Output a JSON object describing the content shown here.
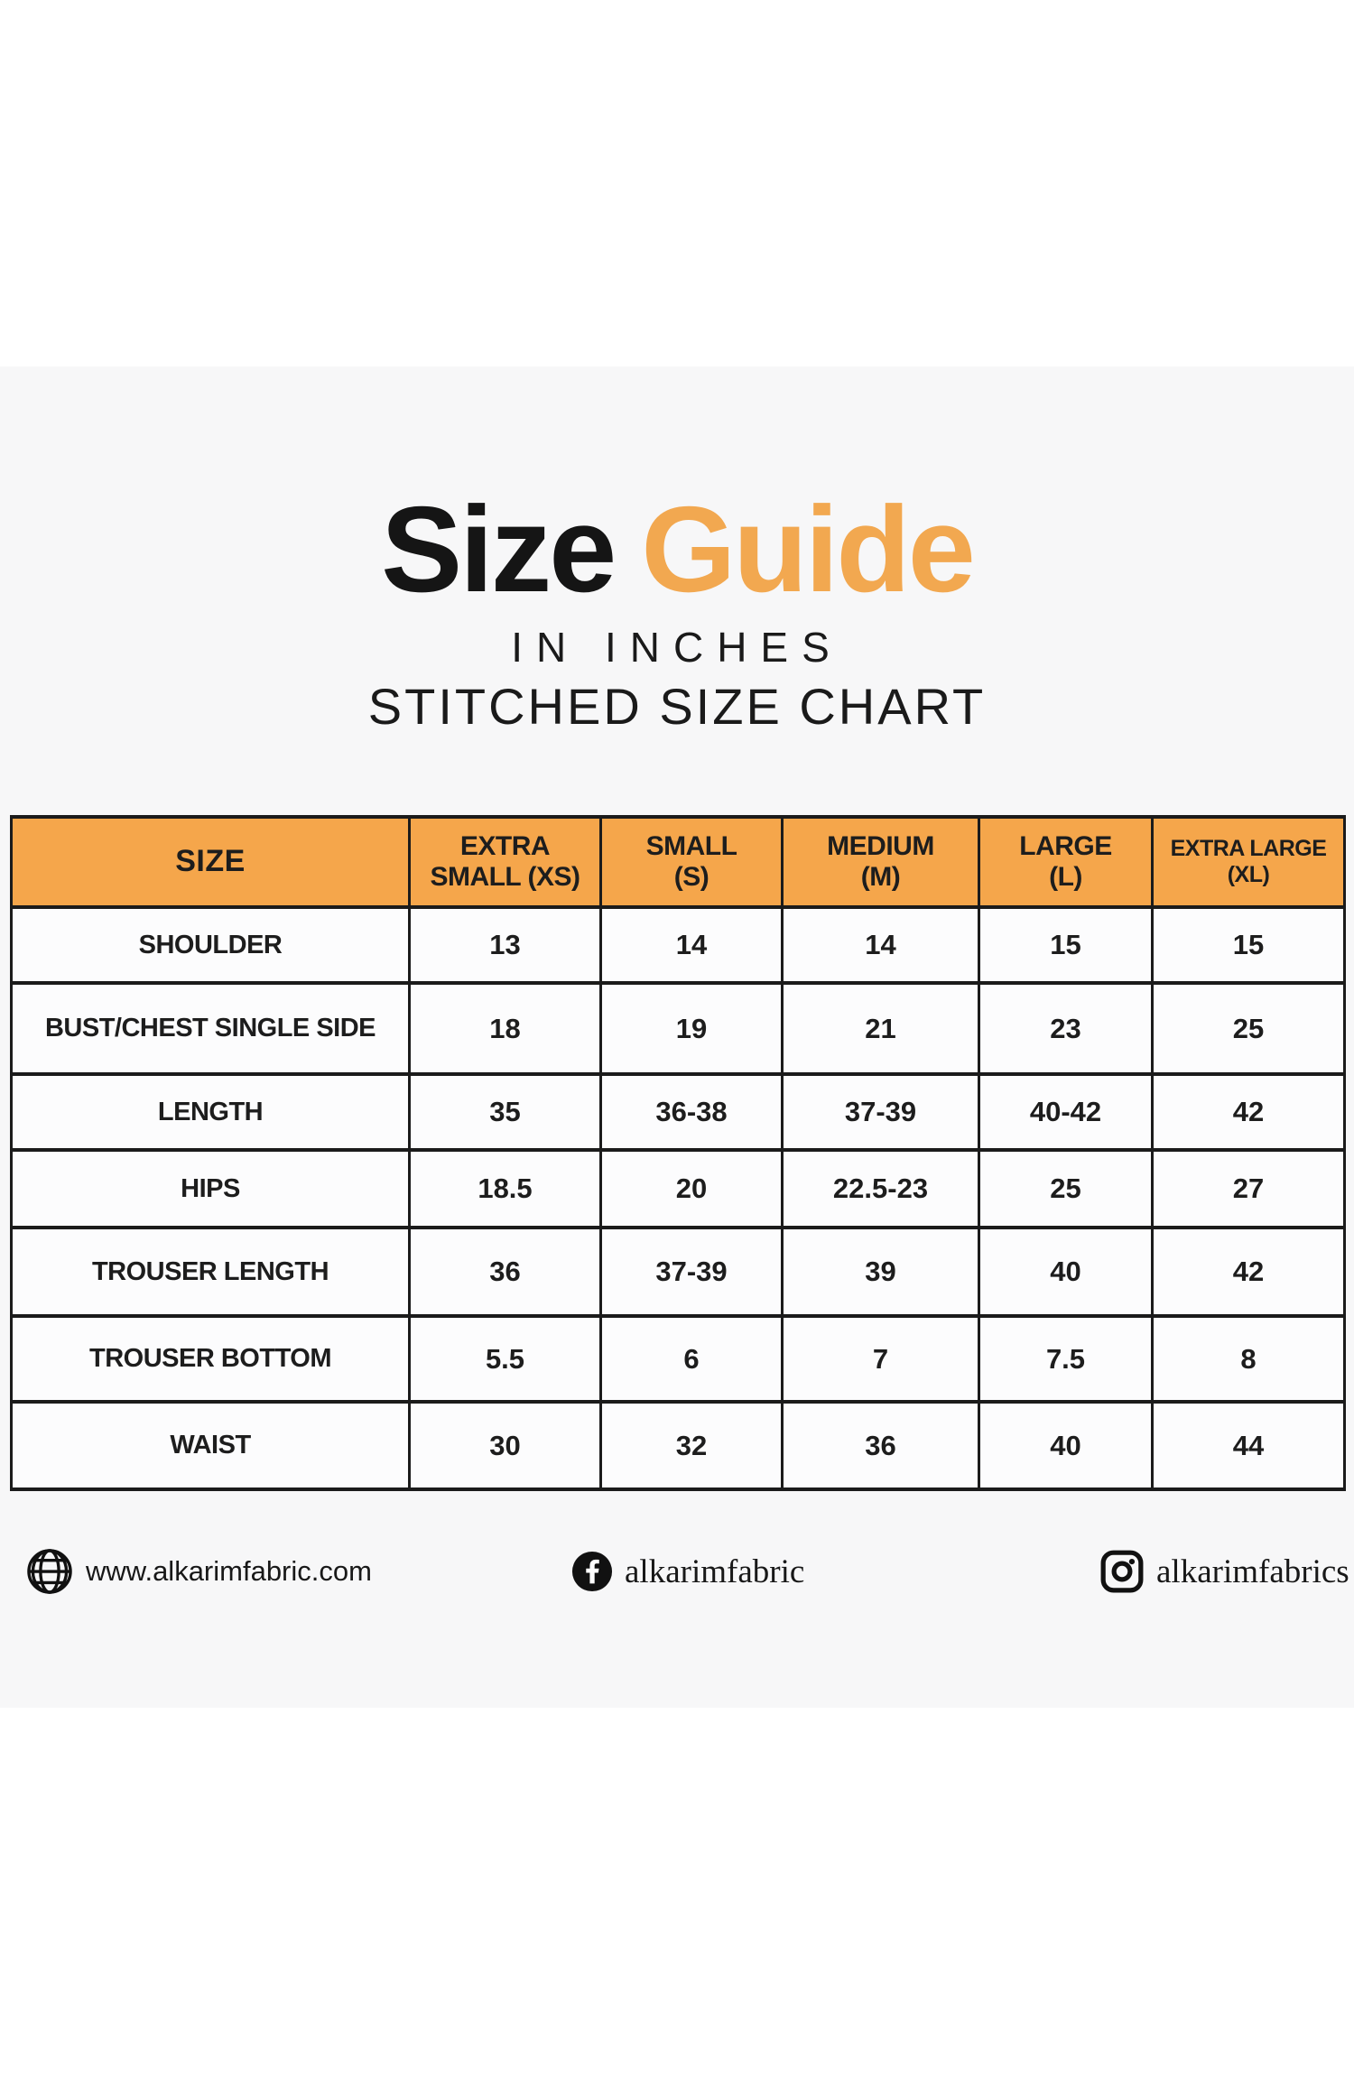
{
  "header": {
    "title_black": "Size",
    "title_orange": "Guide",
    "subtitle_units": "IN INCHES",
    "subtitle_chart": "STITCHED SIZE CHART"
  },
  "colors": {
    "accent_orange": "#F2A850",
    "table_header_bg": "#F5A64B",
    "band_bg": "#F7F7F8",
    "cell_bg": "#FCFCFD",
    "border_dark": "#1B1B1B",
    "text_dark": "#1D1D1D"
  },
  "table": {
    "columns": [
      "SIZE",
      "EXTRA\nSMALL (XS)",
      "SMALL\n(S)",
      "MEDIUM\n(M)",
      "LARGE\n(L)",
      "EXTRA LARGE\n(XL)"
    ],
    "rows": [
      {
        "label": "SHOULDER",
        "values": [
          "13",
          "14",
          "14",
          "15",
          "15"
        ]
      },
      {
        "label": "BUST/CHEST SINGLE SIDE",
        "values": [
          "18",
          "19",
          "21",
          "23",
          "25"
        ]
      },
      {
        "label": "LENGTH",
        "values": [
          "35",
          "36-38",
          "37-39",
          "40-42",
          "42"
        ]
      },
      {
        "label": "HIPS",
        "values": [
          "18.5",
          "20",
          "22.5-23",
          "25",
          "27"
        ]
      },
      {
        "label": "TROUSER LENGTH",
        "values": [
          "36",
          "37-39",
          "39",
          "40",
          "42"
        ]
      },
      {
        "label": "TROUSER BOTTOM",
        "values": [
          "5.5",
          "6",
          "7",
          "7.5",
          "8"
        ]
      },
      {
        "label": "WAIST",
        "values": [
          "30",
          "32",
          "36",
          "40",
          "44"
        ]
      }
    ]
  },
  "footer": {
    "website": {
      "icon": "globe-icon",
      "text": "www.alkarimfabric.com"
    },
    "facebook": {
      "icon": "facebook-icon",
      "text": "alkarimfabric"
    },
    "instagram": {
      "icon": "instagram-icon",
      "text": "alkarimfabrics"
    }
  }
}
